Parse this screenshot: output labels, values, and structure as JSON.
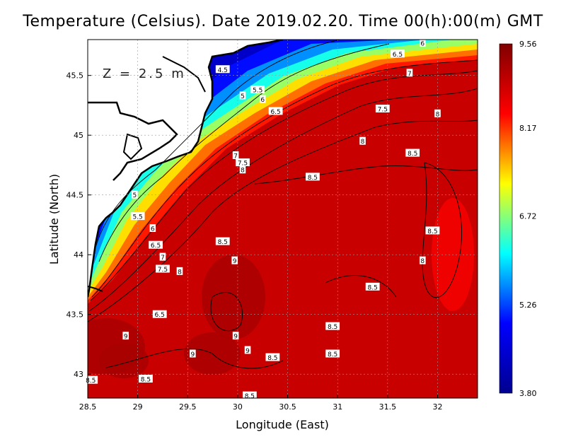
{
  "title": "Temperature (Celsius). Date 2019.02.20. Time 00(h):00(m) GMT",
  "depth_label": "Z = 2.5 m",
  "chart_data": {
    "type": "heatmap",
    "xlabel": "Longitude (East)",
    "ylabel": "Latitude (North)",
    "xlim": [
      28.5,
      32.4
    ],
    "ylim": [
      42.8,
      45.8
    ],
    "x_ticks": [
      "28.5",
      "29",
      "29.5",
      "30",
      "30.5",
      "31",
      "31.5",
      "32"
    ],
    "x_tick_values": [
      28.5,
      29,
      29.5,
      30,
      30.5,
      31,
      31.5,
      32
    ],
    "y_ticks": [
      "43",
      "43.5",
      "44",
      "44.5",
      "45",
      "45.5"
    ],
    "y_tick_values": [
      43,
      43.5,
      44,
      44.5,
      45,
      45.5
    ],
    "grid": true,
    "colorbar": {
      "min": 3.8,
      "max": 9.56,
      "labels": [
        "9.56",
        "8.17",
        "6.72",
        "5.26",
        "3.80"
      ],
      "label_values": [
        9.56,
        8.17,
        6.72,
        5.26,
        3.8
      ],
      "colormap": [
        "#00008f",
        "#0000ff",
        "#00ffff",
        "#ffff00",
        "#ff0000",
        "#800000"
      ]
    },
    "contour_labels": [
      {
        "text": "4.5",
        "lon": 29.85,
        "lat": 45.55
      },
      {
        "text": "5.5",
        "lon": 30.2,
        "lat": 45.38
      },
      {
        "text": "5",
        "lon": 30.05,
        "lat": 45.33
      },
      {
        "text": "6",
        "lon": 30.25,
        "lat": 45.3
      },
      {
        "text": "6.5",
        "lon": 30.38,
        "lat": 45.2
      },
      {
        "text": "6.5",
        "lon": 31.6,
        "lat": 45.68
      },
      {
        "text": "6",
        "lon": 31.85,
        "lat": 45.77
      },
      {
        "text": "7",
        "lon": 31.72,
        "lat": 45.52
      },
      {
        "text": "7.5",
        "lon": 31.45,
        "lat": 45.22
      },
      {
        "text": "8",
        "lon": 32.0,
        "lat": 45.18
      },
      {
        "text": "8",
        "lon": 31.25,
        "lat": 44.95
      },
      {
        "text": "8.5",
        "lon": 31.75,
        "lat": 44.85
      },
      {
        "text": "7",
        "lon": 29.98,
        "lat": 44.83
      },
      {
        "text": "7.5",
        "lon": 30.05,
        "lat": 44.77
      },
      {
        "text": "8",
        "lon": 30.05,
        "lat": 44.71
      },
      {
        "text": "8.5",
        "lon": 30.75,
        "lat": 44.65
      },
      {
        "text": "5",
        "lon": 28.97,
        "lat": 44.5
      },
      {
        "text": "5.5",
        "lon": 29.0,
        "lat": 44.32
      },
      {
        "text": "6",
        "lon": 29.15,
        "lat": 44.22
      },
      {
        "text": "6.5",
        "lon": 29.18,
        "lat": 44.08
      },
      {
        "text": "7",
        "lon": 29.25,
        "lat": 43.98
      },
      {
        "text": "7.5",
        "lon": 29.25,
        "lat": 43.88
      },
      {
        "text": "8",
        "lon": 29.42,
        "lat": 43.86
      },
      {
        "text": "8.5",
        "lon": 29.85,
        "lat": 44.11
      },
      {
        "text": "9",
        "lon": 29.97,
        "lat": 43.95
      },
      {
        "text": "8.5",
        "lon": 31.95,
        "lat": 44.2
      },
      {
        "text": "8",
        "lon": 31.85,
        "lat": 43.95
      },
      {
        "text": "8.5",
        "lon": 31.35,
        "lat": 43.73
      },
      {
        "text": "6.5",
        "lon": 29.22,
        "lat": 43.5
      },
      {
        "text": "8.5",
        "lon": 30.95,
        "lat": 43.4
      },
      {
        "text": "9",
        "lon": 28.88,
        "lat": 43.32
      },
      {
        "text": "9",
        "lon": 29.98,
        "lat": 43.32
      },
      {
        "text": "9",
        "lon": 29.55,
        "lat": 43.17
      },
      {
        "text": "9",
        "lon": 30.1,
        "lat": 43.2
      },
      {
        "text": "8.5",
        "lon": 30.35,
        "lat": 43.14
      },
      {
        "text": "8.5",
        "lon": 30.95,
        "lat": 43.17
      },
      {
        "text": "8.5",
        "lon": 29.08,
        "lat": 42.96
      },
      {
        "text": "8.5",
        "lon": 28.53,
        "lat": 42.95
      },
      {
        "text": "8.5",
        "lon": 30.12,
        "lat": 42.82
      }
    ]
  }
}
